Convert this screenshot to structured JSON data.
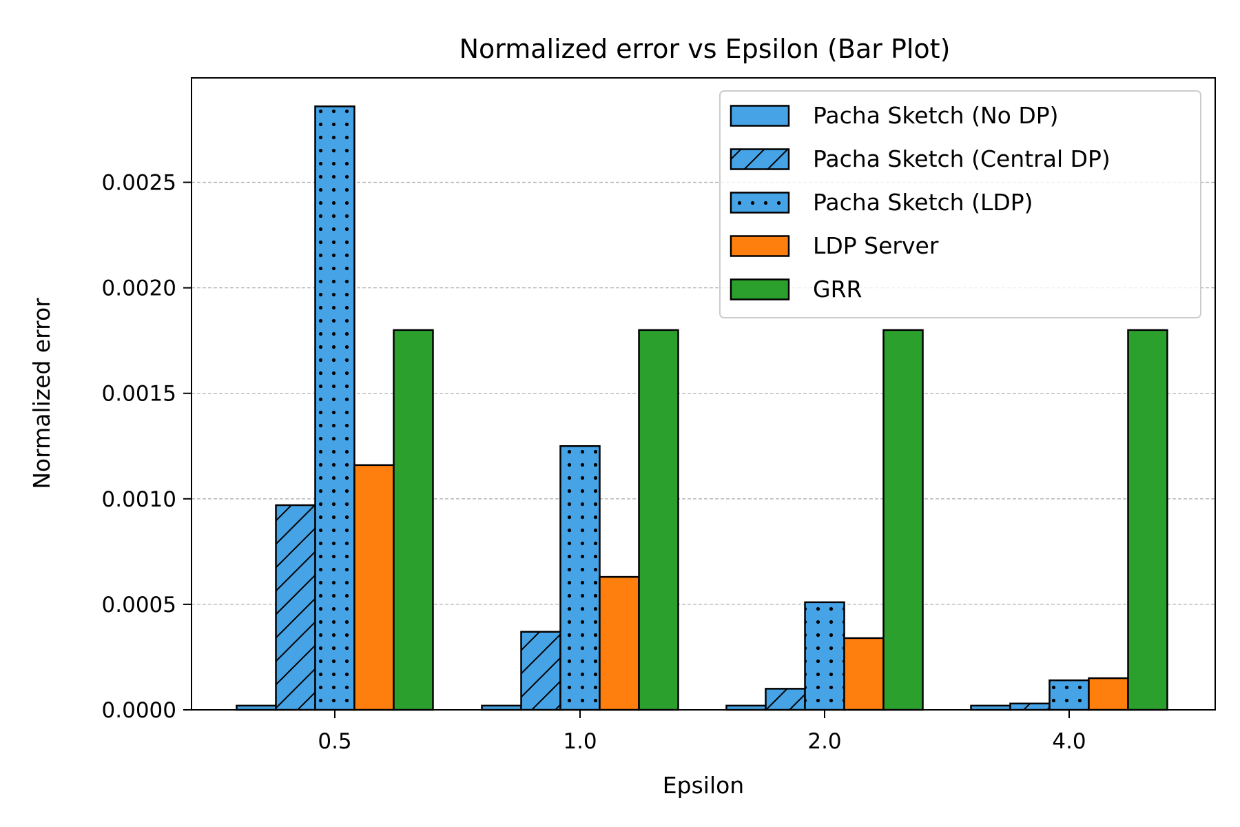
{
  "chart_data": {
    "type": "bar",
    "title": "Normalized error vs Epsilon (Bar Plot)",
    "xlabel": "Epsilon",
    "ylabel": "Normalized error",
    "categories": [
      "0.5",
      "1.0",
      "2.0",
      "4.0"
    ],
    "ylim": [
      0,
      0.003
    ],
    "yticks": [
      0.0,
      0.0005,
      0.001,
      0.0015,
      0.002,
      0.0025
    ],
    "ytick_labels": [
      "0.0000",
      "0.0005",
      "0.0010",
      "0.0015",
      "0.0020",
      "0.0025"
    ],
    "grid": "horizontal dashed",
    "legend_position": "top-right",
    "series": [
      {
        "name": "Pacha Sketch (No DP)",
        "color": "#45a3e6",
        "hatch": "none",
        "values": [
          2e-05,
          2e-05,
          2e-05,
          2e-05
        ]
      },
      {
        "name": "Pacha Sketch (Central DP)",
        "color": "#45a3e6",
        "hatch": "diagonal",
        "values": [
          0.00097,
          0.00037,
          0.0001,
          3e-05
        ]
      },
      {
        "name": "Pacha Sketch (LDP)",
        "color": "#45a3e6",
        "hatch": "dots",
        "values": [
          0.00286,
          0.00125,
          0.00051,
          0.00014
        ]
      },
      {
        "name": "LDP Server",
        "color": "#ff7f0e",
        "hatch": "none",
        "values": [
          0.00116,
          0.00063,
          0.00034,
          0.00015
        ]
      },
      {
        "name": "GRR",
        "color": "#2ca02c",
        "hatch": "none",
        "values": [
          0.0018,
          0.0018,
          0.0018,
          0.0018
        ]
      }
    ]
  }
}
